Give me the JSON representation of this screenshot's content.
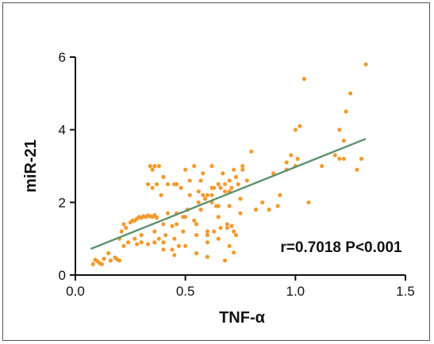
{
  "chart_data": {
    "type": "scatter",
    "title": "",
    "xlabel": "TNF-α",
    "ylabel": "miR-21",
    "xlim": [
      0,
      1.5
    ],
    "ylim": [
      0,
      6
    ],
    "x_ticks": [
      0.0,
      0.5,
      1.0,
      1.5
    ],
    "x_tick_labels": [
      "0.0",
      "0.5",
      "1.0",
      "1.5"
    ],
    "y_ticks": [
      0,
      2,
      4,
      6
    ],
    "y_tick_labels": [
      "0",
      "2",
      "4",
      "6"
    ],
    "grid": false,
    "legend": "none",
    "annotation": "r=0.7018 P<0.001",
    "colors": {
      "points": "#f39a2e",
      "fit_line": "#5d9270",
      "axes": "#111111"
    },
    "fit_line": {
      "x": [
        0.07,
        1.32
      ],
      "y": [
        0.72,
        3.75
      ]
    },
    "series": [
      {
        "x": [
          0.08,
          0.09,
          0.1,
          0.11,
          0.12,
          0.13,
          0.15,
          0.16,
          0.18,
          0.19,
          0.2,
          0.21,
          0.22,
          0.2,
          0.22,
          0.24,
          0.26,
          0.28,
          0.3,
          0.32,
          0.34,
          0.36,
          0.23,
          0.25,
          0.27,
          0.29,
          0.31,
          0.33,
          0.35,
          0.37,
          0.4,
          0.42,
          0.44,
          0.46,
          0.49,
          0.51,
          0.54,
          0.57,
          0.6,
          0.63,
          0.66,
          0.69,
          0.71,
          0.73,
          0.34,
          0.36,
          0.38,
          0.33,
          0.35,
          0.37,
          0.39,
          0.42,
          0.46,
          0.49,
          0.52,
          0.56,
          0.6,
          0.64,
          0.36,
          0.38,
          0.41,
          0.44,
          0.47,
          0.27,
          0.3,
          0.33,
          0.36,
          0.4,
          0.45,
          0.5,
          0.55,
          0.6,
          0.65,
          0.69,
          0.72,
          0.56,
          0.59,
          0.62,
          0.65,
          0.68,
          0.71,
          0.46,
          0.5,
          0.54,
          0.58,
          0.62,
          0.66,
          0.7,
          0.73,
          0.76,
          0.35,
          0.4,
          0.45,
          0.48,
          0.52,
          0.57,
          0.62,
          0.67,
          0.7,
          0.74,
          0.78,
          0.58,
          0.63,
          0.68,
          0.72,
          0.76,
          0.8,
          0.5,
          0.55,
          0.6,
          0.65,
          0.7,
          0.75,
          0.82,
          0.85,
          0.9,
          0.93,
          0.96,
          1.0,
          0.88,
          0.92,
          0.96,
          1.01,
          1.06,
          1.12,
          0.98,
          1.0,
          1.02,
          1.18,
          1.2,
          1.22,
          1.23,
          1.25,
          1.28,
          1.04,
          1.3,
          1.32,
          1.2,
          1.22,
          0.7,
          0.72,
          0.68,
          0.6,
          0.55,
          0.45,
          0.4,
          0.3,
          0.28,
          0.65,
          0.62,
          0.7,
          0.75
        ],
        "y": [
          0.3,
          0.42,
          0.38,
          0.33,
          0.3,
          0.45,
          0.6,
          0.4,
          0.48,
          0.43,
          0.4,
          1.2,
          1.4,
          1.0,
          0.8,
          0.9,
          1.5,
          1.55,
          1.58,
          1.6,
          1.62,
          1.65,
          1.3,
          1.45,
          1.5,
          1.6,
          1.62,
          1.64,
          1.6,
          1.58,
          1.4,
          1.7,
          1.35,
          1.7,
          1.2,
          1.8,
          1.5,
          1.8,
          1.1,
          1.2,
          1.3,
          1.4,
          1.35,
          1.1,
          3.0,
          3.0,
          3.0,
          2.5,
          2.4,
          2.5,
          2.2,
          2.5,
          1.4,
          1.6,
          2.6,
          2.3,
          2.2,
          1.9,
          0.9,
          1.0,
          1.1,
          0.7,
          0.8,
          1.0,
          1.1,
          0.85,
          1.2,
          0.9,
          1.0,
          0.8,
          1.1,
          0.9,
          1.0,
          1.3,
          1.2,
          2.0,
          2.1,
          2.2,
          2.5,
          2.3,
          2.4,
          2.5,
          2.9,
          3.0,
          2.8,
          3.0,
          2.4,
          2.6,
          2.7,
          2.9,
          2.9,
          2.7,
          2.5,
          2.4,
          2.2,
          2.6,
          2.4,
          2.8,
          2.3,
          2.5,
          2.6,
          2.2,
          2.4,
          2.5,
          2.9,
          3.0,
          3.4,
          1.6,
          1.4,
          1.2,
          1.6,
          1.9,
          2.1,
          1.8,
          2.0,
          2.8,
          2.2,
          2.9,
          3.0,
          1.8,
          1.9,
          3.1,
          3.2,
          2.0,
          3.0,
          3.3,
          4.0,
          4.1,
          3.3,
          3.2,
          3.7,
          4.5,
          5.0,
          2.9,
          5.4,
          3.2,
          5.8,
          4.0,
          3.2,
          0.8,
          0.62,
          0.4,
          0.5,
          0.6,
          0.55,
          0.7,
          0.9,
          0.85,
          1.9,
          2.0,
          2.3,
          1.7
        ]
      }
    ]
  }
}
